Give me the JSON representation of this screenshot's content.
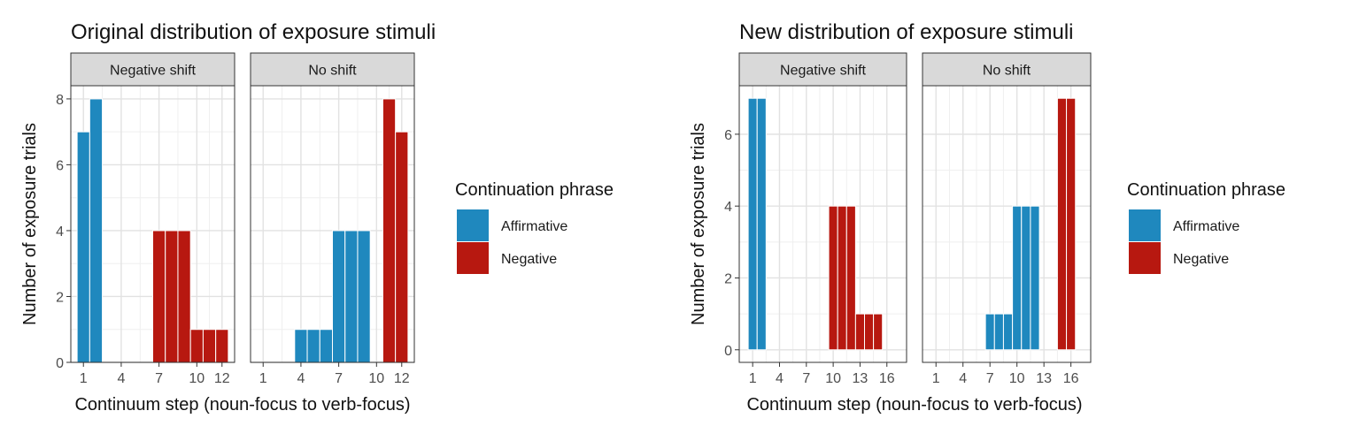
{
  "chart_data": [
    {
      "type": "bar",
      "title": "Original distribution of exposure stimuli",
      "xlabel": "Continuum step (noun-focus to verb-focus)",
      "ylabel": "Number of exposure trials",
      "xlim": [
        0,
        13
      ],
      "ylim": [
        0,
        8.4
      ],
      "xticks": [
        1,
        4,
        7,
        10,
        12
      ],
      "yticks": [
        0,
        2,
        4,
        6,
        8
      ],
      "grid": true,
      "facets": [
        {
          "label": "Negative shift",
          "bars": [
            {
              "x": 1,
              "value": 7,
              "series": "Affirmative"
            },
            {
              "x": 2,
              "value": 8,
              "series": "Affirmative"
            },
            {
              "x": 7,
              "value": 4,
              "series": "Negative"
            },
            {
              "x": 8,
              "value": 4,
              "series": "Negative"
            },
            {
              "x": 9,
              "value": 4,
              "series": "Negative"
            },
            {
              "x": 10,
              "value": 1,
              "series": "Negative"
            },
            {
              "x": 11,
              "value": 1,
              "series": "Negative"
            },
            {
              "x": 12,
              "value": 1,
              "series": "Negative"
            }
          ]
        },
        {
          "label": "No shift",
          "bars": [
            {
              "x": 4,
              "value": 1,
              "series": "Affirmative"
            },
            {
              "x": 5,
              "value": 1,
              "series": "Affirmative"
            },
            {
              "x": 6,
              "value": 1,
              "series": "Affirmative"
            },
            {
              "x": 7,
              "value": 4,
              "series": "Affirmative"
            },
            {
              "x": 8,
              "value": 4,
              "series": "Affirmative"
            },
            {
              "x": 9,
              "value": 4,
              "series": "Affirmative"
            },
            {
              "x": 11,
              "value": 8,
              "series": "Negative"
            },
            {
              "x": 12,
              "value": 7,
              "series": "Negative"
            }
          ]
        }
      ],
      "legend": {
        "title": "Continuation phrase",
        "position": "right",
        "entries": [
          {
            "name": "Affirmative",
            "color": "#1F88BE"
          },
          {
            "name": "Negative",
            "color": "#B71810"
          }
        ]
      }
    },
    {
      "type": "bar",
      "title": "New distribution of exposure stimuli",
      "xlabel": "Continuum step (noun-focus to verb-focus)",
      "ylabel": "Number of exposure trials",
      "xlim": [
        -0.5,
        18.2
      ],
      "ylim": [
        -0.35,
        7.35
      ],
      "xticks": [
        1,
        4,
        7,
        10,
        13,
        16
      ],
      "yticks": [
        0,
        2,
        4,
        6
      ],
      "grid": true,
      "facets": [
        {
          "label": "Negative shift",
          "bars": [
            {
              "x": 1,
              "value": 7,
              "series": "Affirmative"
            },
            {
              "x": 2,
              "value": 7,
              "series": "Affirmative"
            },
            {
              "x": 10,
              "value": 4,
              "series": "Negative"
            },
            {
              "x": 11,
              "value": 4,
              "series": "Negative"
            },
            {
              "x": 12,
              "value": 4,
              "series": "Negative"
            },
            {
              "x": 13,
              "value": 1,
              "series": "Negative"
            },
            {
              "x": 14,
              "value": 1,
              "series": "Negative"
            },
            {
              "x": 15,
              "value": 1,
              "series": "Negative"
            }
          ]
        },
        {
          "label": "No shift",
          "bars": [
            {
              "x": 7,
              "value": 1,
              "series": "Affirmative"
            },
            {
              "x": 8,
              "value": 1,
              "series": "Affirmative"
            },
            {
              "x": 9,
              "value": 1,
              "series": "Affirmative"
            },
            {
              "x": 10,
              "value": 4,
              "series": "Affirmative"
            },
            {
              "x": 11,
              "value": 4,
              "series": "Affirmative"
            },
            {
              "x": 12,
              "value": 4,
              "series": "Affirmative"
            },
            {
              "x": 15,
              "value": 7,
              "series": "Negative"
            },
            {
              "x": 16,
              "value": 7,
              "series": "Negative"
            }
          ]
        }
      ],
      "legend": {
        "title": "Continuation phrase",
        "position": "right",
        "entries": [
          {
            "name": "Affirmative",
            "color": "#1F88BE"
          },
          {
            "name": "Negative",
            "color": "#B71810"
          }
        ]
      }
    }
  ]
}
